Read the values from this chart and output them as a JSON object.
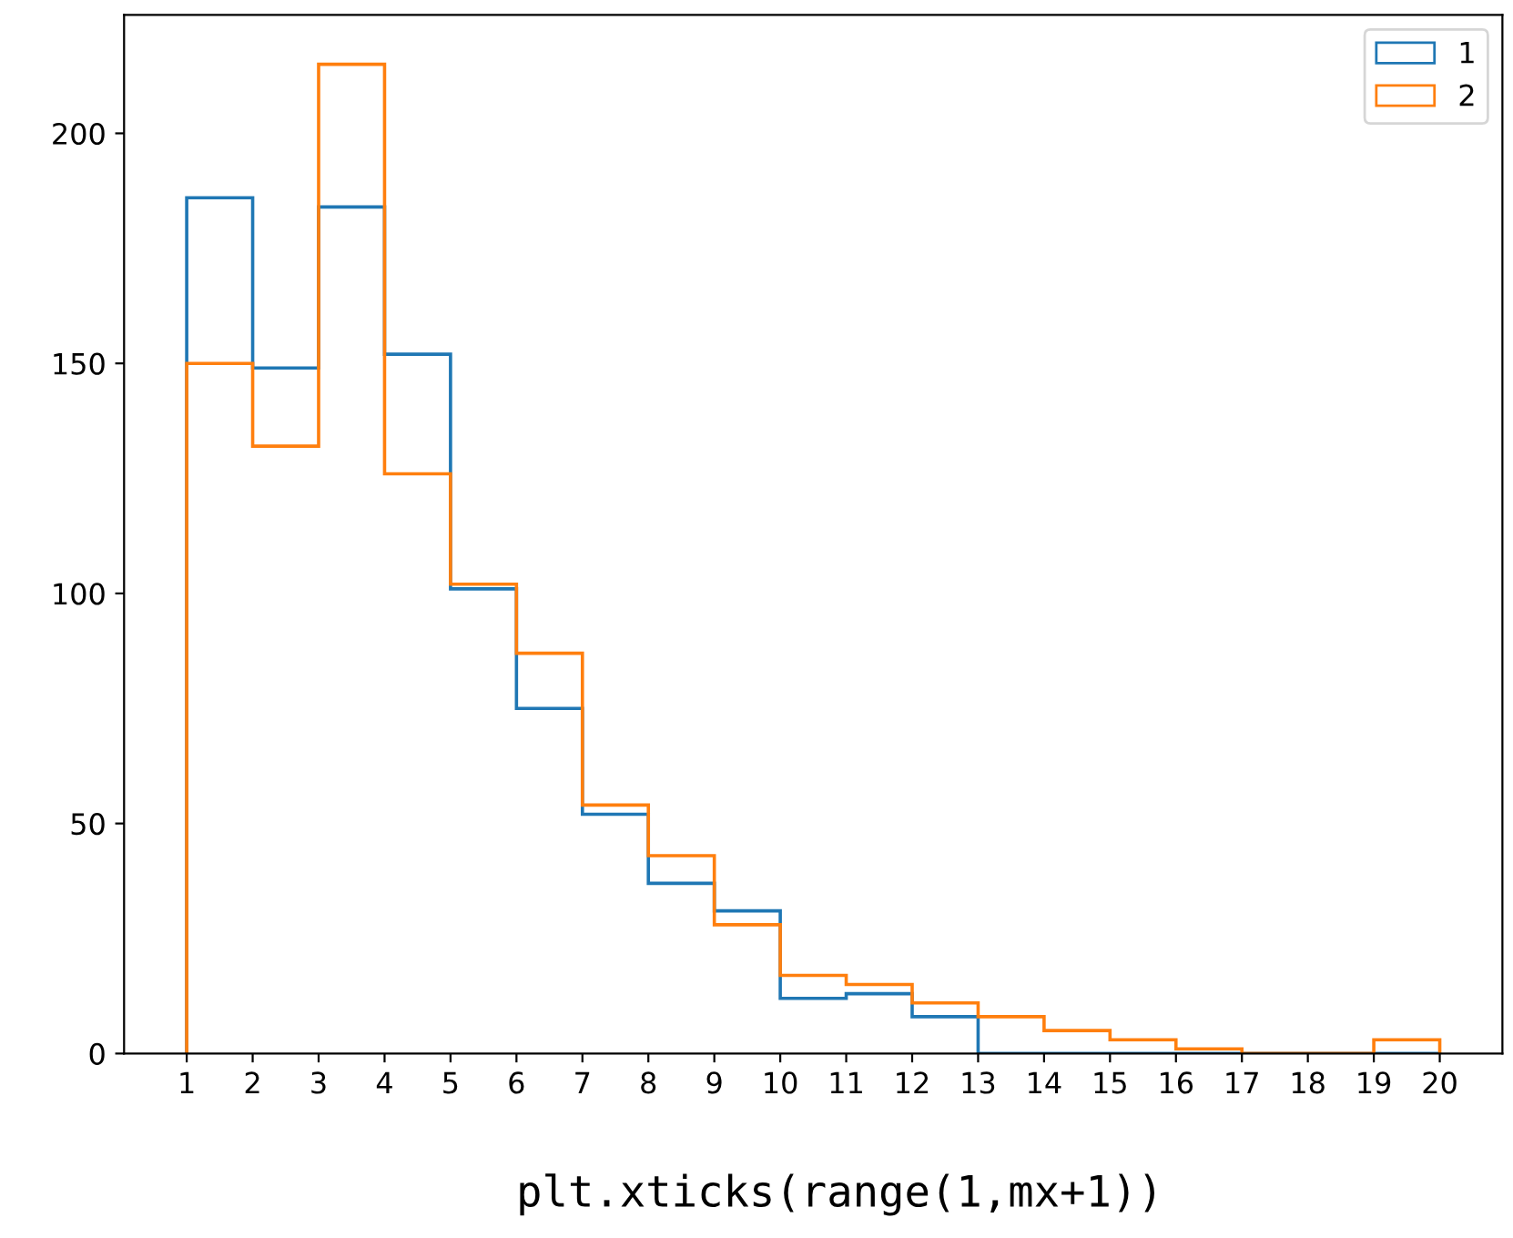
{
  "chart_data": {
    "type": "histogram",
    "bins": [
      1,
      2,
      3,
      4,
      5,
      6,
      7,
      8,
      9,
      10,
      11,
      12,
      13,
      14,
      15,
      16,
      17,
      18,
      19,
      20
    ],
    "series": [
      {
        "name": "1",
        "color": "#1f77b4",
        "values": [
          186,
          149,
          184,
          152,
          101,
          75,
          52,
          37,
          31,
          12,
          13,
          8,
          0,
          0,
          0,
          0,
          0,
          0,
          0
        ]
      },
      {
        "name": "2",
        "color": "#ff7f0e",
        "values": [
          150,
          132,
          215,
          126,
          102,
          87,
          54,
          43,
          28,
          17,
          15,
          11,
          8,
          5,
          3,
          1,
          0,
          0,
          3
        ]
      }
    ],
    "xlim": [
      0.05,
      20.95
    ],
    "xticks": [
      1,
      2,
      3,
      4,
      5,
      6,
      7,
      8,
      9,
      10,
      11,
      12,
      13,
      14,
      15,
      16,
      17,
      18,
      19,
      20
    ],
    "ylim": [
      0,
      225.75
    ],
    "yticks": [
      0,
      50,
      100,
      150,
      200
    ],
    "grid": false,
    "legend": "top right",
    "annotations": [
      "plt.xticks(range(1,mx+1))"
    ]
  }
}
